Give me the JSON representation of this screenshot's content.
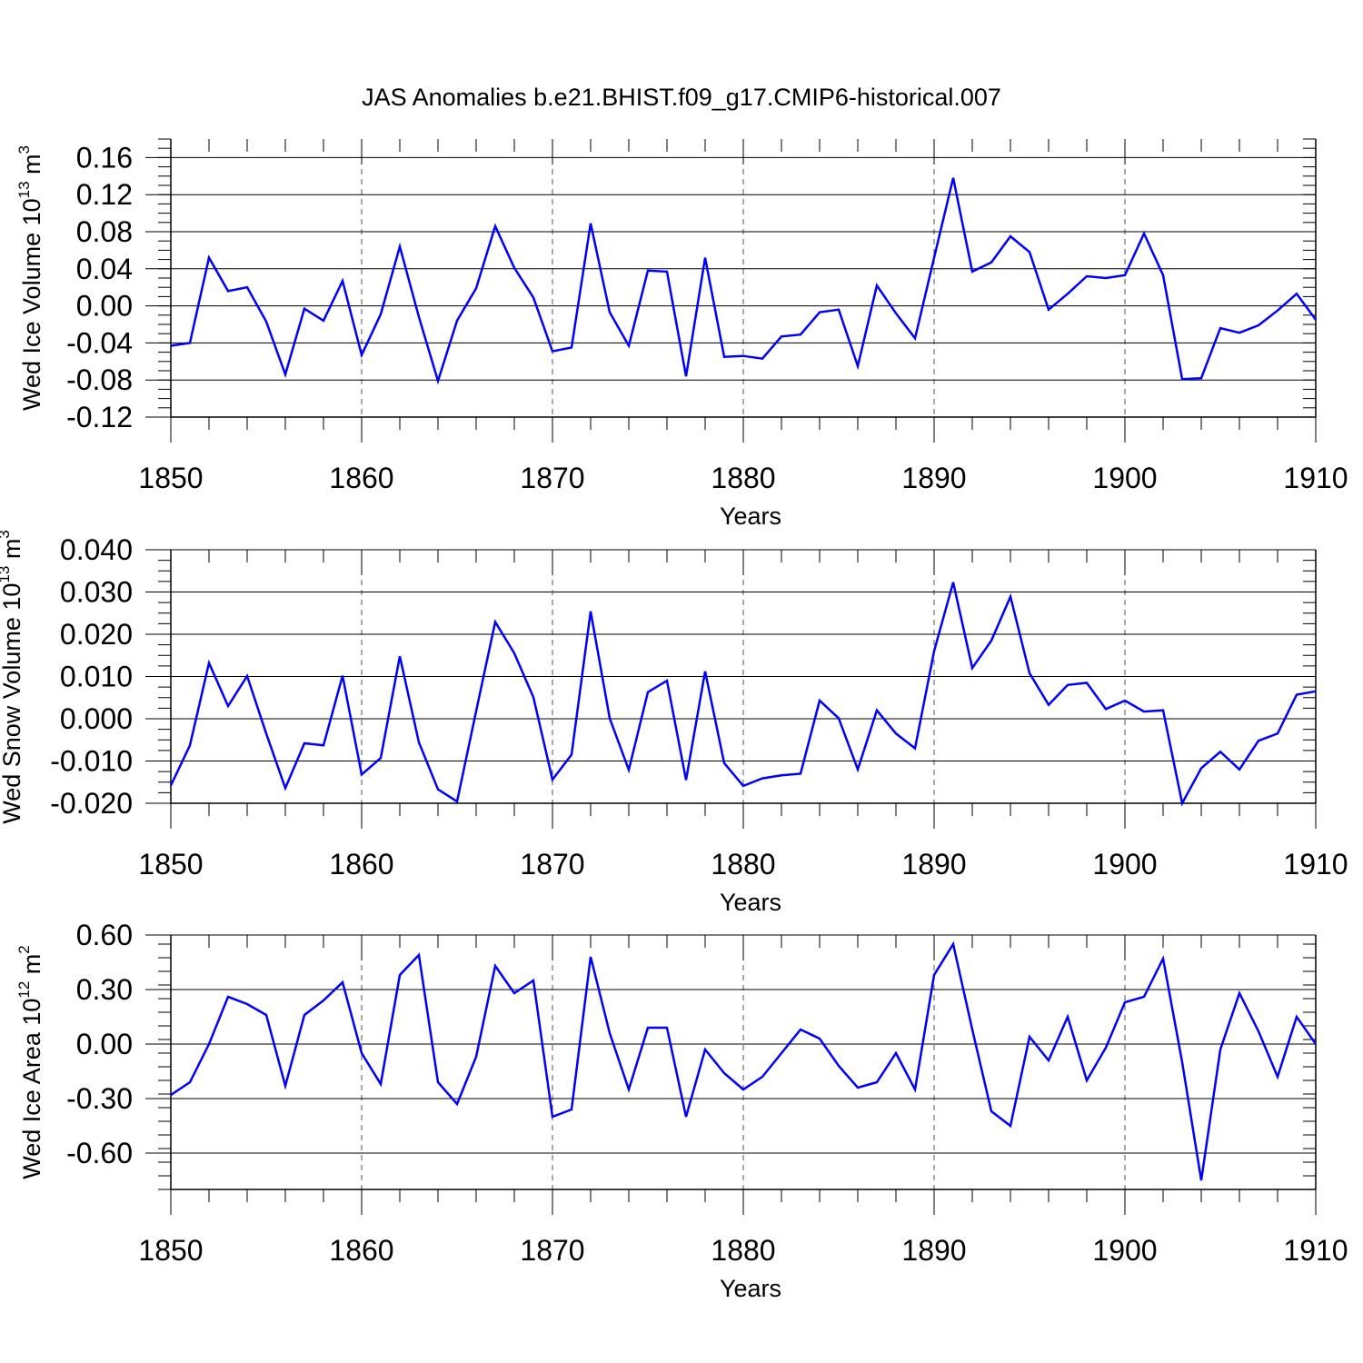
{
  "title": "JAS Anomalies b.e21.BHIST.f09_g17.CMIP6-historical.007",
  "colors": {
    "line": "#0000ff",
    "axes": "#000000",
    "grid": "#555555"
  },
  "chart_data": [
    {
      "type": "line",
      "name": "ice-volume",
      "ylabel": {
        "text": "Wed Ice Volume 10",
        "exponent": "13",
        "unit": "m",
        "unit_exponent": "3"
      },
      "xlabel": "Years",
      "xlim": [
        1850,
        1910
      ],
      "ylim": [
        -0.12,
        0.18
      ],
      "xticks": [
        1850,
        1860,
        1870,
        1880,
        1890,
        1900,
        1910
      ],
      "xtick_labels": [
        "1850",
        "1860",
        "1870",
        "1880",
        "1890",
        "1900",
        "1910"
      ],
      "yticks": [
        0.16,
        0.12,
        0.08,
        0.04,
        0.0,
        -0.04,
        -0.08,
        -0.12
      ],
      "ytick_labels": [
        "0.16",
        "0.12",
        "0.08",
        "0.04",
        "0.00",
        "-0.04",
        "-0.08",
        "-0.12"
      ],
      "grid": "dashed vertical at major x ticks",
      "x": [
        1850,
        1851,
        1852,
        1853,
        1854,
        1855,
        1856,
        1857,
        1858,
        1859,
        1860,
        1861,
        1862,
        1863,
        1864,
        1865,
        1866,
        1867,
        1868,
        1869,
        1870,
        1871,
        1872,
        1873,
        1874,
        1875,
        1876,
        1877,
        1878,
        1879,
        1880,
        1881,
        1882,
        1883,
        1884,
        1885,
        1886,
        1887,
        1888,
        1889,
        1890,
        1891,
        1892,
        1893,
        1894,
        1895,
        1896,
        1897,
        1898,
        1899,
        1900,
        1901,
        1902,
        1903,
        1904,
        1905,
        1906,
        1907,
        1908,
        1909,
        1910
      ],
      "values": [
        -0.043,
        -0.04,
        0.052,
        0.016,
        0.02,
        -0.017,
        -0.074,
        -0.003,
        -0.016,
        0.027,
        -0.053,
        -0.009,
        0.064,
        -0.012,
        -0.081,
        -0.016,
        0.019,
        0.086,
        0.041,
        0.009,
        -0.049,
        -0.045,
        0.089,
        -0.007,
        -0.043,
        0.038,
        0.037,
        -0.076,
        0.052,
        -0.055,
        -0.054,
        -0.057,
        -0.033,
        -0.031,
        -0.007,
        -0.004,
        -0.065,
        0.022,
        -0.008,
        -0.035,
        0.052,
        0.138,
        0.037,
        0.047,
        0.075,
        0.058,
        -0.004,
        0.013,
        0.032,
        0.03,
        0.033,
        0.078,
        0.033,
        -0.079,
        -0.078,
        -0.024,
        -0.029,
        -0.021,
        -0.005,
        0.013,
        -0.015
      ]
    },
    {
      "type": "line",
      "name": "snow-volume",
      "ylabel": {
        "text": "Wed Snow Volume 10",
        "exponent": "13",
        "unit": "m",
        "unit_exponent": "3"
      },
      "xlabel": "Years",
      "xlim": [
        1850,
        1910
      ],
      "ylim": [
        -0.02,
        0.04
      ],
      "xticks": [
        1850,
        1860,
        1870,
        1880,
        1890,
        1900,
        1910
      ],
      "xtick_labels": [
        "1850",
        "1860",
        "1870",
        "1880",
        "1890",
        "1900",
        "1910"
      ],
      "yticks": [
        0.04,
        0.03,
        0.02,
        0.01,
        0.0,
        -0.01,
        -0.02
      ],
      "ytick_labels": [
        "0.040",
        "0.030",
        "0.020",
        "0.010",
        "0.000",
        "-0.010",
        "-0.020"
      ],
      "grid": "dashed vertical at major x ticks",
      "x": [
        1850,
        1851,
        1852,
        1853,
        1854,
        1855,
        1856,
        1857,
        1858,
        1859,
        1860,
        1861,
        1862,
        1863,
        1864,
        1865,
        1866,
        1867,
        1868,
        1869,
        1870,
        1871,
        1872,
        1873,
        1874,
        1875,
        1876,
        1877,
        1878,
        1879,
        1880,
        1881,
        1882,
        1883,
        1884,
        1885,
        1886,
        1887,
        1888,
        1889,
        1890,
        1891,
        1892,
        1893,
        1894,
        1895,
        1896,
        1897,
        1898,
        1899,
        1900,
        1901,
        1902,
        1903,
        1904,
        1905,
        1906,
        1907,
        1908,
        1909,
        1910
      ],
      "values": [
        -0.0158,
        -0.0063,
        0.0132,
        0.003,
        0.0101,
        -0.0035,
        -0.0164,
        -0.0058,
        -0.0063,
        0.0102,
        -0.0132,
        -0.0093,
        0.0148,
        -0.0056,
        -0.0167,
        -0.0196,
        0.0018,
        0.0229,
        0.0155,
        0.0051,
        -0.0144,
        -0.0085,
        0.0254,
        0.0001,
        -0.0121,
        0.0063,
        0.009,
        -0.0145,
        0.0112,
        -0.0105,
        -0.0159,
        -0.0141,
        -0.0134,
        -0.013,
        0.0043,
        0.0001,
        -0.012,
        0.002,
        -0.0035,
        -0.007,
        0.016,
        0.0323,
        0.012,
        0.0185,
        0.0289,
        0.0108,
        0.0033,
        0.008,
        0.0085,
        0.0023,
        0.0043,
        0.0017,
        0.002,
        -0.02,
        -0.0117,
        -0.0078,
        -0.012,
        -0.0052,
        -0.0035,
        0.0057,
        0.0065
      ]
    },
    {
      "type": "line",
      "name": "ice-area",
      "ylabel": {
        "text": "Wed Ice Area 10",
        "exponent": "12",
        "unit": "m",
        "unit_exponent": "2"
      },
      "xlabel": "Years",
      "xlim": [
        1850,
        1910
      ],
      "ylim": [
        -0.8,
        0.6
      ],
      "xticks": [
        1850,
        1860,
        1870,
        1880,
        1890,
        1900,
        1910
      ],
      "xtick_labels": [
        "1850",
        "1860",
        "1870",
        "1880",
        "1890",
        "1900",
        "1910"
      ],
      "yticks": [
        0.6,
        0.3,
        0.0,
        -0.3,
        -0.6
      ],
      "ytick_labels": [
        "0.60",
        "0.30",
        "0.00",
        "-0.30",
        "-0.60"
      ],
      "grid": "dashed vertical at major x ticks",
      "x": [
        1850,
        1851,
        1852,
        1853,
        1854,
        1855,
        1856,
        1857,
        1858,
        1859,
        1860,
        1861,
        1862,
        1863,
        1864,
        1865,
        1866,
        1867,
        1868,
        1869,
        1870,
        1871,
        1872,
        1873,
        1874,
        1875,
        1876,
        1877,
        1878,
        1879,
        1880,
        1881,
        1882,
        1883,
        1884,
        1885,
        1886,
        1887,
        1888,
        1889,
        1890,
        1891,
        1892,
        1893,
        1894,
        1895,
        1896,
        1897,
        1898,
        1899,
        1900,
        1901,
        1902,
        1903,
        1904,
        1905,
        1906,
        1907,
        1908,
        1909,
        1910
      ],
      "values": [
        -0.28,
        -0.21,
        0.0,
        0.26,
        0.22,
        0.16,
        -0.23,
        0.16,
        0.24,
        0.34,
        -0.05,
        -0.22,
        0.38,
        0.49,
        -0.21,
        -0.33,
        -0.07,
        0.43,
        0.28,
        0.35,
        -0.4,
        -0.36,
        0.48,
        0.06,
        -0.25,
        0.09,
        0.09,
        -0.4,
        -0.03,
        -0.16,
        -0.25,
        -0.18,
        -0.05,
        0.08,
        0.03,
        -0.12,
        -0.24,
        -0.21,
        -0.05,
        -0.25,
        0.38,
        0.55,
        0.08,
        -0.37,
        -0.45,
        0.04,
        -0.09,
        0.15,
        -0.2,
        -0.02,
        0.23,
        0.26,
        0.47,
        -0.1,
        -0.75,
        -0.03,
        0.28,
        0.07,
        -0.18,
        0.15,
        0.0
      ]
    }
  ]
}
